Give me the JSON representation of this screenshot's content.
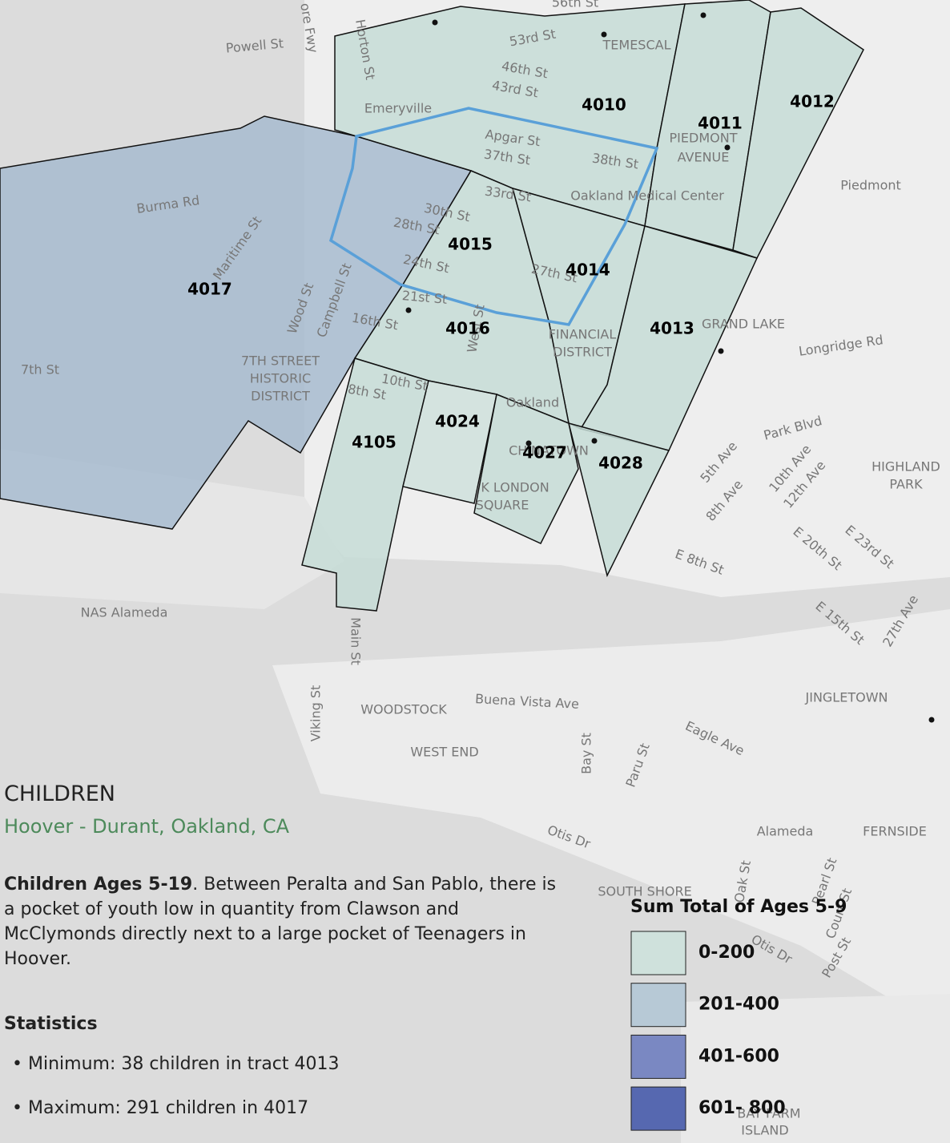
{
  "map": {
    "tracts": [
      {
        "label": "4017",
        "color": "#a7bbcf"
      },
      {
        "label": "4010",
        "color": "#c6dcd6"
      },
      {
        "label": "4011",
        "color": "#c6dcd6"
      },
      {
        "label": "4012",
        "color": "#c6dcd6"
      },
      {
        "label": "4015",
        "color": "#c6dcd6"
      },
      {
        "label": "4014",
        "color": "#c6dcd6"
      },
      {
        "label": "4016",
        "color": "#c6dcd6"
      },
      {
        "label": "4013",
        "color": "#c6dcd6"
      },
      {
        "label": "4105",
        "color": "#c6dcd6"
      },
      {
        "label": "4024",
        "color": "#cfe1dc"
      },
      {
        "label": "4027",
        "color": "#c6dcd6"
      },
      {
        "label": "4028",
        "color": "#c6dcd6"
      }
    ],
    "labels": [
      "56th St",
      "Powell St",
      "ore Fwy",
      "Horton St",
      "53rd St",
      "46th St",
      "43rd St",
      "TEMESCAL",
      "Emeryville",
      "Apgar St",
      "37th St",
      "38th St",
      "33rd St",
      "Oakland Medical Center",
      "PIEDMONT",
      "AVENUE",
      "Piedmont",
      "Burma Rd",
      "Maritime St",
      "30th St",
      "28th St",
      "24th St",
      "27th St",
      "21st St",
      "16th St",
      "Wood St",
      "Campbell St",
      "West St",
      "FINANCIAL",
      "DISTRICT",
      "GRAND LAKE",
      "Longridge Rd",
      "7TH STREET",
      "HISTORIC",
      "DISTRICT",
      "7th St",
      "10th St",
      "8th St",
      "Oakland",
      "CHINATOWN",
      "K LONDON",
      "SQUARE",
      "Park Blvd",
      "5th Ave",
      "8th Ave",
      "10th Ave",
      "12th Ave",
      "HIGHLAND",
      "PARK",
      "E 20th St",
      "E 23rd St",
      "E 8th St",
      "E 15th St",
      "27th Ave",
      "NAS Alameda",
      "Main St",
      "Viking St",
      "Buena Vista Ave",
      "WOODSTOCK",
      "JINGLETOWN",
      "Eagle Ave",
      "WEST END",
      "Bay St",
      "Paru St",
      "Otis Dr",
      "Alameda",
      "FERNSIDE",
      "SOUTH SHORE",
      "Oak St",
      "Pearl St",
      "Court St",
      "Otis Dr",
      "Post St",
      "BAY FARM",
      "ISLAND"
    ]
  },
  "panel": {
    "title": "CHILDREN",
    "subtitle": "Hoover - Durant, Oakland, CA",
    "description_lead": "Children Ages 5-19",
    "description": ".  Between Peralta and San Pablo, there is a pocket of youth low in quantity from Clawson and McClymonds directly next to a large pocket of Teenagers in Hoover.",
    "statistics_heading": "Statistics",
    "statistics": [
      "Minimum: 38 children in tract 4013",
      "Maximum: 291 children in 4017"
    ]
  },
  "legend": {
    "title": "Sum Total of Ages 5-9",
    "items": [
      {
        "label": "0-200",
        "color": "#cfe1dc"
      },
      {
        "label": "201-400",
        "color": "#b7c9d6"
      },
      {
        "label": "401-600",
        "color": "#7a88c2"
      },
      {
        "label": "601- 800",
        "color": "#5668b0"
      }
    ]
  }
}
